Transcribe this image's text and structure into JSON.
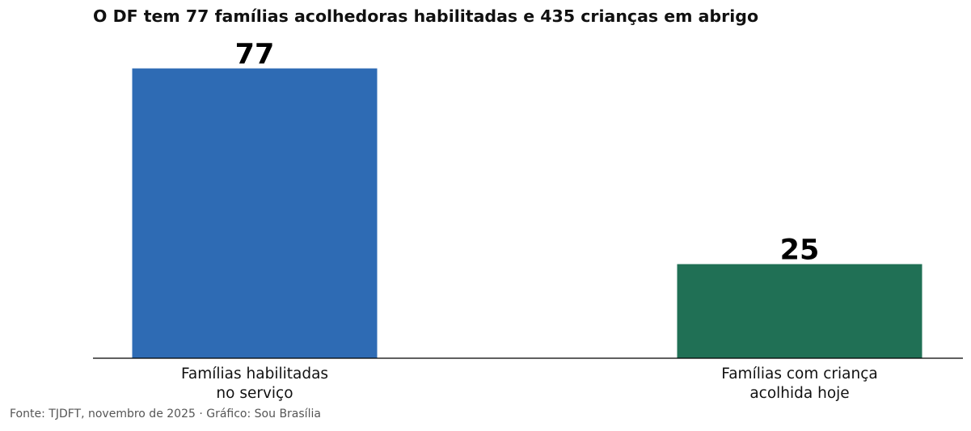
{
  "chart_data": {
    "type": "bar",
    "title": "O DF tem 77 famílias acolhedoras habilitadas e 435 crianças em abrigo",
    "categories": [
      [
        "Famílias habilitadas",
        "no serviço"
      ],
      [
        "Famílias com criança",
        "acolhida hoje"
      ]
    ],
    "values": [
      77,
      25
    ],
    "value_labels": [
      "77",
      "25"
    ],
    "colors": [
      "#2e6bb4",
      "#207055"
    ],
    "xlabel": "",
    "ylabel": "",
    "ylim": [
      0,
      84
    ],
    "grid": false,
    "legend": "none"
  },
  "source": "Fonte: TJDFT, novembro de 2025 · Gráfico: Sou Brasília"
}
